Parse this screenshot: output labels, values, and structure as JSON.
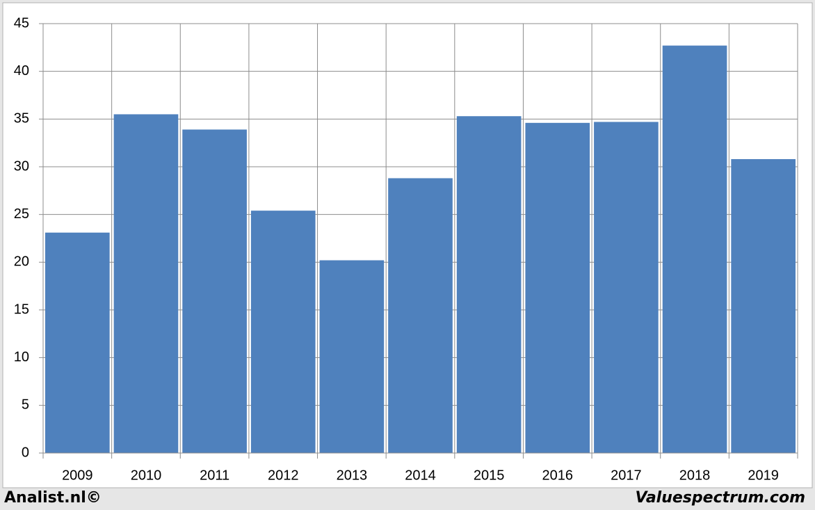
{
  "chart_data": {
    "type": "bar",
    "categories": [
      "2009",
      "2010",
      "2011",
      "2012",
      "2013",
      "2014",
      "2015",
      "2016",
      "2017",
      "2018",
      "2019"
    ],
    "values": [
      23.1,
      35.5,
      33.9,
      25.4,
      20.2,
      28.8,
      35.3,
      34.6,
      34.7,
      42.7,
      30.8
    ],
    "color": "#4f81bd",
    "ylim": [
      0,
      45
    ],
    "yticks": [
      0,
      5,
      10,
      15,
      20,
      25,
      30,
      35,
      40,
      45
    ],
    "grid": true
  },
  "footer": {
    "left": "Analist.nl©",
    "right": "Valuespectrum.com"
  }
}
